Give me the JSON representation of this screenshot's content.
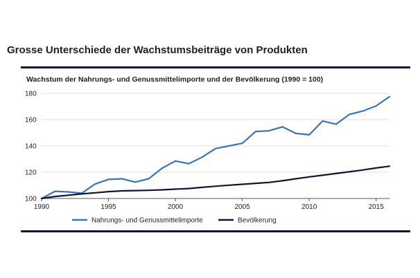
{
  "page": {
    "title": "Grosse Unterschiede der Wachstumsbeiträge von Produkten"
  },
  "chart_data": {
    "type": "line",
    "title": "Wachstum der Nahrungs- und Genussmittelimporte und der Bevölkerung (1990 = 100)",
    "xlabel": "",
    "ylabel": "",
    "xlim": [
      1990,
      2016
    ],
    "ylim": [
      100,
      180
    ],
    "x_ticks": [
      1990,
      1995,
      2000,
      2005,
      2010,
      2015
    ],
    "y_ticks": [
      100,
      120,
      140,
      160,
      180
    ],
    "grid": true,
    "legend_position": "bottom",
    "x": [
      1990,
      1991,
      1992,
      1993,
      1994,
      1995,
      1996,
      1997,
      1998,
      1999,
      2000,
      2001,
      2002,
      2003,
      2004,
      2005,
      2006,
      2007,
      2008,
      2009,
      2010,
      2011,
      2012,
      2013,
      2014,
      2015,
      2016
    ],
    "series": [
      {
        "name": "Nahrungs- und Genussmittelimporte",
        "color": "#3d72b4",
        "values": [
          100,
          105.5,
          105,
          104,
          111,
          114.5,
          115,
          112.5,
          115,
          123,
          128.5,
          126.5,
          131.5,
          138,
          140,
          142,
          151,
          151.5,
          154.5,
          149.5,
          148.5,
          159,
          156.5,
          164,
          166.5,
          170.5,
          177.5
        ]
      },
      {
        "name": "Bevölkerung",
        "color": "#0c1633",
        "values": [
          100,
          101.5,
          102.5,
          103.5,
          104.3,
          105.2,
          105.8,
          106,
          106.2,
          106.6,
          107.1,
          107.6,
          108.5,
          109.3,
          110.1,
          110.8,
          111.5,
          112.2,
          113.5,
          115,
          116.4,
          117.7,
          119,
          120.3,
          121.7,
          123.2,
          124.6
        ]
      }
    ]
  }
}
